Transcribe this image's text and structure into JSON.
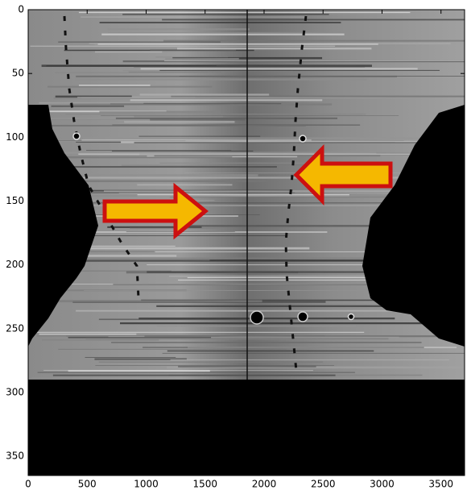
{
  "chart_data": {
    "type": "image",
    "xlim": [
      0,
      3700
    ],
    "ylim": [
      365,
      0
    ],
    "xticks": [
      0,
      500,
      1000,
      1500,
      2000,
      2500,
      3000,
      3500
    ],
    "yticks": [
      0,
      50,
      100,
      150,
      200,
      250,
      300,
      350
    ]
  }
}
